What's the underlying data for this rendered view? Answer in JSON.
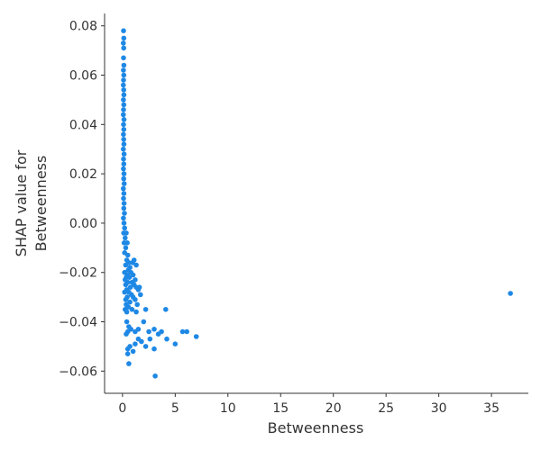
{
  "chart_data": {
    "type": "scatter",
    "title": "",
    "xlabel": "Betweenness",
    "ylabel_lines": [
      "SHAP value for",
      "Betweenness"
    ],
    "xlim": [
      -1.7,
      38.5
    ],
    "ylim": [
      -0.069,
      0.085
    ],
    "xticks": [
      0,
      5,
      10,
      15,
      20,
      25,
      30,
      35
    ],
    "yticks": [
      -0.06,
      -0.04,
      -0.02,
      0.0,
      0.02,
      0.04,
      0.06,
      0.08
    ],
    "ytick_labels": [
      "−0.06",
      "−0.04",
      "−0.02",
      "0.00",
      "0.02",
      "0.04",
      "0.06",
      "0.08"
    ],
    "grid": false,
    "point_color": "#1E88E5",
    "series": [
      {
        "values": [
          [
            0.1,
            0.078
          ],
          [
            0.12,
            0.075
          ],
          [
            0.08,
            0.073
          ],
          [
            0.11,
            0.071
          ],
          [
            0.1,
            0.067
          ],
          [
            0.13,
            0.064
          ],
          [
            0.09,
            0.062
          ],
          [
            0.12,
            0.06
          ],
          [
            0.1,
            0.058
          ],
          [
            0.08,
            0.056
          ],
          [
            0.11,
            0.054
          ],
          [
            0.13,
            0.052
          ],
          [
            0.09,
            0.05
          ],
          [
            0.12,
            0.048
          ],
          [
            0.1,
            0.046
          ],
          [
            0.08,
            0.044
          ],
          [
            0.14,
            0.042
          ],
          [
            0.1,
            0.04
          ],
          [
            0.12,
            0.038
          ],
          [
            0.09,
            0.036
          ],
          [
            0.11,
            0.034
          ],
          [
            0.13,
            0.032
          ],
          [
            0.08,
            0.03
          ],
          [
            0.15,
            0.028
          ],
          [
            0.1,
            0.026
          ],
          [
            0.12,
            0.024
          ],
          [
            0.09,
            0.022
          ],
          [
            0.14,
            0.02
          ],
          [
            0.11,
            0.018
          ],
          [
            0.16,
            0.016
          ],
          [
            0.08,
            0.014
          ],
          [
            0.13,
            0.012
          ],
          [
            0.1,
            0.01
          ],
          [
            0.15,
            0.008
          ],
          [
            0.12,
            0.006
          ],
          [
            0.18,
            0.004
          ],
          [
            0.09,
            0.002
          ],
          [
            0.14,
            0.0
          ],
          [
            0.2,
            -0.002
          ],
          [
            0.11,
            -0.004
          ],
          [
            0.25,
            -0.006
          ],
          [
            0.16,
            -0.008
          ],
          [
            0.35,
            -0.004
          ],
          [
            0.45,
            -0.008
          ],
          [
            0.3,
            -0.01
          ],
          [
            0.2,
            -0.012
          ],
          [
            0.5,
            -0.013
          ],
          [
            0.4,
            -0.015
          ],
          [
            0.6,
            -0.016
          ],
          [
            0.3,
            -0.017
          ],
          [
            0.7,
            -0.018
          ],
          [
            0.55,
            -0.019
          ],
          [
            0.2,
            -0.02
          ],
          [
            0.8,
            -0.02
          ],
          [
            0.45,
            -0.021
          ],
          [
            1.0,
            -0.021
          ],
          [
            0.35,
            -0.022
          ],
          [
            0.65,
            -0.022
          ],
          [
            1.2,
            -0.023
          ],
          [
            0.25,
            -0.023
          ],
          [
            0.9,
            -0.024
          ],
          [
            0.5,
            -0.024
          ],
          [
            1.1,
            -0.025
          ],
          [
            0.3,
            -0.025
          ],
          [
            0.75,
            -0.026
          ],
          [
            1.3,
            -0.026
          ],
          [
            0.4,
            -0.027
          ],
          [
            0.6,
            -0.028
          ],
          [
            1.5,
            -0.027
          ],
          [
            0.2,
            -0.028
          ],
          [
            0.85,
            -0.029
          ],
          [
            1.0,
            -0.03
          ],
          [
            0.45,
            -0.03
          ],
          [
            0.3,
            -0.031
          ],
          [
            0.7,
            -0.032
          ],
          [
            1.2,
            -0.031
          ],
          [
            0.35,
            -0.033
          ],
          [
            0.55,
            -0.034
          ],
          [
            0.9,
            -0.035
          ],
          [
            0.25,
            -0.035
          ],
          [
            1.4,
            -0.033
          ],
          [
            1.7,
            -0.029
          ],
          [
            1.6,
            -0.026
          ],
          [
            1.3,
            -0.017
          ],
          [
            1.1,
            -0.015
          ],
          [
            0.95,
            -0.016
          ],
          [
            0.4,
            -0.036
          ],
          [
            1.3,
            -0.036
          ],
          [
            2.2,
            -0.035
          ],
          [
            4.1,
            -0.035
          ],
          [
            0.4,
            -0.04
          ],
          [
            0.6,
            -0.042
          ],
          [
            0.8,
            -0.043
          ],
          [
            0.5,
            -0.044
          ],
          [
            0.35,
            -0.045
          ],
          [
            1.2,
            -0.044
          ],
          [
            1.5,
            -0.043
          ],
          [
            2.0,
            -0.04
          ],
          [
            2.5,
            -0.044
          ],
          [
            3.0,
            -0.043
          ],
          [
            3.4,
            -0.045
          ],
          [
            3.7,
            -0.044
          ],
          [
            5.7,
            -0.044
          ],
          [
            6.1,
            -0.044
          ],
          [
            7.0,
            -0.046
          ],
          [
            4.2,
            -0.047
          ],
          [
            5.0,
            -0.049
          ],
          [
            2.6,
            -0.047
          ],
          [
            1.8,
            -0.048
          ],
          [
            1.5,
            -0.047
          ],
          [
            0.7,
            -0.05
          ],
          [
            0.5,
            -0.051
          ],
          [
            1.2,
            -0.049
          ],
          [
            2.2,
            -0.05
          ],
          [
            3.0,
            -0.051
          ],
          [
            0.5,
            -0.053
          ],
          [
            1.0,
            -0.052
          ],
          [
            0.6,
            -0.057
          ],
          [
            3.1,
            -0.062
          ],
          [
            36.8,
            -0.0285
          ]
        ]
      }
    ]
  }
}
